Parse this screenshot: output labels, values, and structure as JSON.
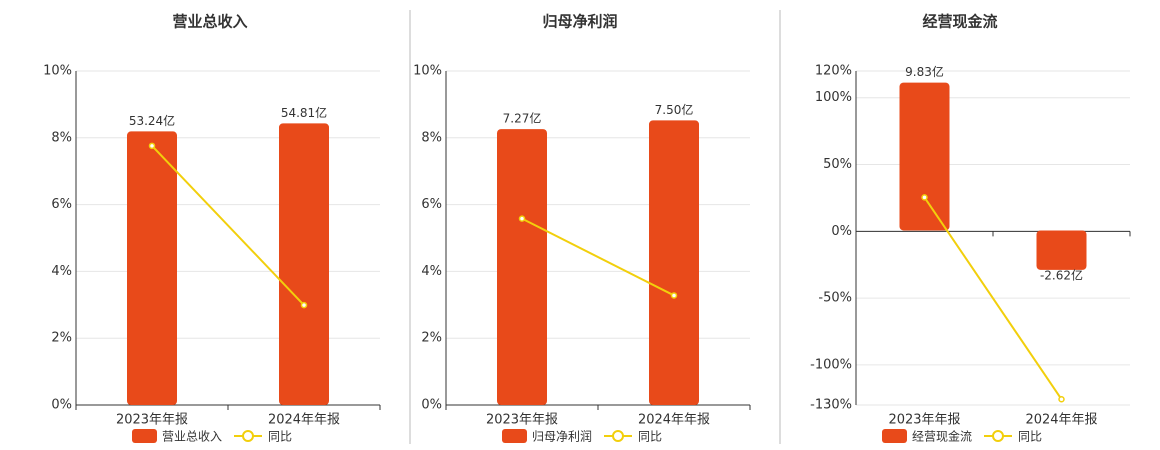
{
  "chart_data": [
    {
      "type": "bar",
      "title": "营业总收入",
      "categories": [
        "2023年年报",
        "2024年年报"
      ],
      "series": [
        {
          "name": "营业总收入",
          "color": "#e84a1a",
          "axis": "y2",
          "values": [
            53.24,
            54.81
          ],
          "value_labels": [
            "53.24亿",
            "54.81亿"
          ]
        },
        {
          "name": "同比",
          "type": "line",
          "color": "#f2cf0c",
          "values": [
            7.76,
            2.99
          ]
        }
      ],
      "ylim": [
        0,
        10
      ],
      "yticks": [
        {
          "value": 0,
          "label": "0%"
        },
        {
          "value": 2,
          "label": "2%"
        },
        {
          "value": 4,
          "label": "4%"
        },
        {
          "value": 6,
          "label": "6%"
        },
        {
          "value": 8,
          "label": "8%"
        },
        {
          "value": 10,
          "label": "10%"
        }
      ],
      "y2lim": [
        0,
        65
      ],
      "grid": true
    },
    {
      "type": "bar",
      "title": "归母净利润",
      "categories": [
        "2023年年报",
        "2024年年报"
      ],
      "series": [
        {
          "name": "归母净利润",
          "color": "#e84a1a",
          "axis": "y2",
          "values": [
            7.27,
            7.5
          ],
          "value_labels": [
            "7.27亿",
            "7.50亿"
          ]
        },
        {
          "name": "同比",
          "type": "line",
          "color": "#f2cf0c",
          "values": [
            5.58,
            3.28
          ]
        }
      ],
      "ylim": [
        0,
        10
      ],
      "yticks": [
        {
          "value": 0,
          "label": "0%"
        },
        {
          "value": 2,
          "label": "2%"
        },
        {
          "value": 4,
          "label": "4%"
        },
        {
          "value": 6,
          "label": "6%"
        },
        {
          "value": 8,
          "label": "8%"
        },
        {
          "value": 10,
          "label": "10%"
        }
      ],
      "y2lim": [
        0,
        8.8
      ],
      "grid": true
    },
    {
      "type": "bar",
      "title": "经营现金流",
      "categories": [
        "2023年年报",
        "2024年年报"
      ],
      "series": [
        {
          "name": "经营现金流",
          "color": "#e84a1a",
          "axis": "y2",
          "values": [
            9.83,
            -2.62
          ],
          "value_labels": [
            "9.83亿",
            "-2.62亿"
          ]
        },
        {
          "name": "同比",
          "type": "line",
          "color": "#f2cf0c",
          "values": [
            25.4,
            -125.7
          ]
        }
      ],
      "ylim": [
        -130,
        120
      ],
      "yticks": [
        {
          "value": -130,
          "label": "-130%"
        },
        {
          "value": -100,
          "label": "-100%"
        },
        {
          "value": -50,
          "label": "-50%"
        },
        {
          "value": 0,
          "label": "0%"
        },
        {
          "value": 50,
          "label": "50%"
        },
        {
          "value": 100,
          "label": "100%"
        },
        {
          "value": 120,
          "label": "120%"
        }
      ],
      "y2lim": [
        -11.6,
        10.6
      ],
      "grid": true
    }
  ]
}
